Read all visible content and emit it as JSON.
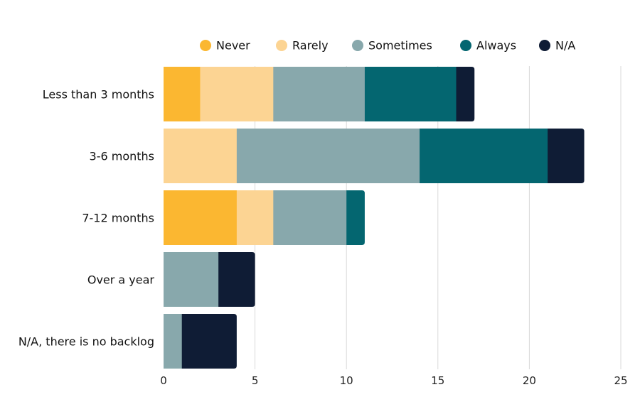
{
  "chart_data": {
    "type": "bar",
    "orientation": "horizontal",
    "stacked": true,
    "title": "",
    "xlabel": "",
    "ylabel": "",
    "xlim": [
      0,
      25
    ],
    "x_ticks": [
      0,
      5,
      10,
      15,
      20,
      25
    ],
    "grid": "vertical",
    "legend_position": "top",
    "categories": [
      "Less than 3 months",
      "3-6 months",
      "7-12 months",
      "Over a year",
      "N/A, there is no backlog"
    ],
    "series": [
      {
        "name": "Never",
        "color": "#FBB731",
        "values": [
          2,
          0,
          4,
          0,
          0
        ]
      },
      {
        "name": "Rarely",
        "color": "#FCD493",
        "values": [
          4,
          4,
          2,
          0,
          0
        ]
      },
      {
        "name": "Sometimes",
        "color": "#88A8AC",
        "values": [
          5,
          10,
          4,
          3,
          1
        ]
      },
      {
        "name": "Always",
        "color": "#046670",
        "values": [
          5,
          7,
          1,
          0,
          0
        ]
      },
      {
        "name": "N/A",
        "color": "#0F1C35",
        "values": [
          1,
          2,
          0,
          2,
          3
        ]
      }
    ]
  }
}
